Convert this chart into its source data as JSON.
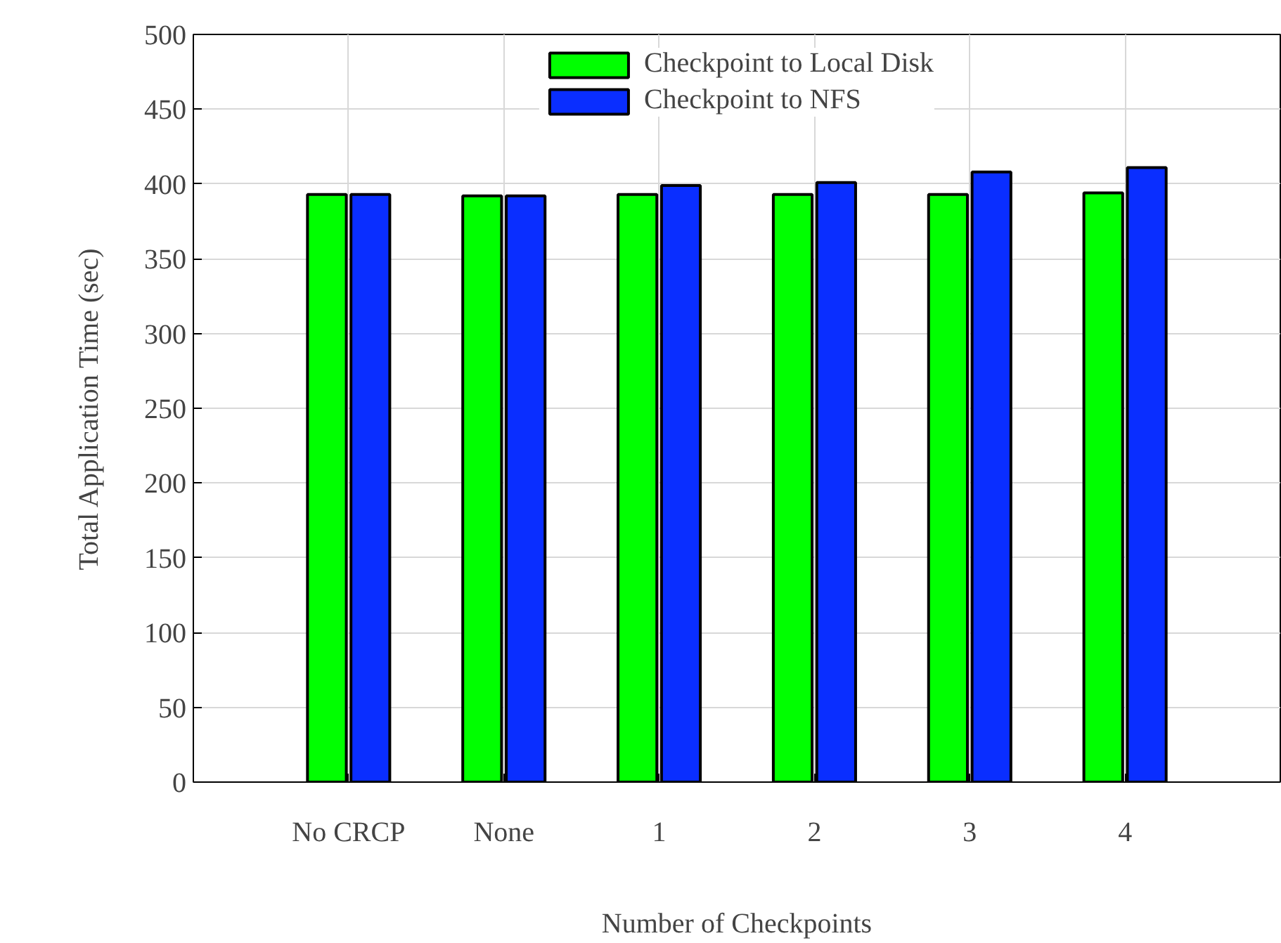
{
  "chart_data": {
    "type": "bar",
    "xlabel": "Number of Checkpoints",
    "ylabel": "Total Application Time (sec)",
    "categories": [
      "No CRCP",
      "None",
      "1",
      "2",
      "3",
      "4"
    ],
    "series": [
      {
        "name": "Checkpoint to Local Disk",
        "color": "#00ff00",
        "values": [
          393,
          392,
          393,
          393,
          393,
          394
        ]
      },
      {
        "name": "Checkpoint to NFS",
        "color": "#0a2eff",
        "values": [
          393,
          392,
          399,
          401,
          408,
          411
        ]
      }
    ],
    "ylim": [
      0,
      500
    ],
    "yticks": [
      0,
      50,
      100,
      150,
      200,
      250,
      300,
      350,
      400,
      450,
      500
    ],
    "grid": true,
    "legend": "top"
  }
}
